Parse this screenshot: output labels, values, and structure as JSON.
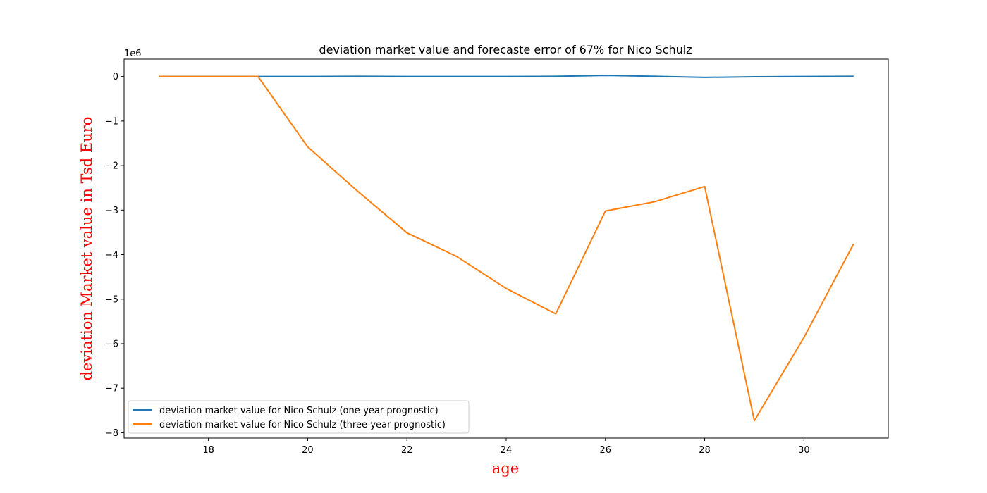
{
  "chart_data": {
    "type": "line",
    "title": "deviation market value and forecaste error of 67% for Nico Schulz",
    "xlabel": "age",
    "ylabel": "deviation Market value in Tsd Euro",
    "y_offset_label": "1e6",
    "xlim": [
      16.3,
      31.7
    ],
    "ylim": [
      -8.12,
      0.39
    ],
    "x_ticks": [
      18,
      20,
      22,
      24,
      26,
      28,
      30
    ],
    "y_ticks": [
      0,
      -1,
      -2,
      -3,
      -4,
      -5,
      -6,
      -7,
      -8
    ],
    "y_tick_labels": [
      "0",
      "−1",
      "−2",
      "−3",
      "−4",
      "−5",
      "−6",
      "−7",
      "−8"
    ],
    "grid": false,
    "legend_position": "lower-left",
    "label_color": "#ff0000",
    "x": [
      17,
      18,
      19,
      20,
      21,
      22,
      23,
      24,
      25,
      26,
      27,
      28,
      29,
      30,
      31
    ],
    "series": [
      {
        "name": "deviation market value for Nico Schulz (one-year prognostic)",
        "color": "#1f77b4",
        "values": [
          0,
          0,
          0,
          0,
          0.005,
          0,
          0,
          0,
          0.005,
          0.025,
          0.005,
          -0.02,
          -0.005,
          0,
          0.005
        ]
      },
      {
        "name": "deviation market value for Nico Schulz (three-year prognostic)",
        "color": "#ff7f0e",
        "values": [
          0,
          0,
          0,
          -1.58,
          -2.57,
          -3.51,
          -4.04,
          -4.76,
          -5.33,
          -3.02,
          -2.81,
          -2.47,
          -7.73,
          -5.86,
          -3.76
        ]
      }
    ]
  }
}
